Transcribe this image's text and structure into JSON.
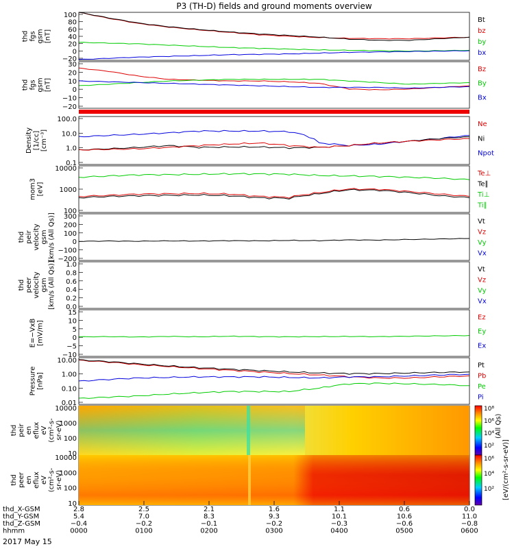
{
  "title": "P3 (TH-D) fields and ground moments overview",
  "colors": {
    "black": "#000000",
    "red": "#dd0000",
    "green": "#00cc00",
    "blue": "#0000dd"
  },
  "colorbar_label_left": "[eV/(cm²-s-sr-eV)]",
  "colorbar_label_right": "(All Qs)",
  "colorbar_ticks": [
    "10⁸",
    "10⁶",
    "10⁴",
    "10²"
  ],
  "colorbar_ticks_lower": [
    "10⁶",
    "10⁴",
    "10²"
  ],
  "chart_data": [
    {
      "type": "line",
      "ylabel": [
        "thd",
        "fgs",
        "gsm",
        "[nT]"
      ],
      "ylim": [
        -20,
        100
      ],
      "ticks": [
        "100",
        "80",
        "60",
        "40",
        "20",
        "0",
        "−20"
      ],
      "legend": [
        {
          "name": "Bt",
          "color": "#000000"
        },
        {
          "name": "bz",
          "color": "#dd0000"
        },
        {
          "name": "by",
          "color": "#00cc00"
        },
        {
          "name": "bx",
          "color": "#0000dd"
        }
      ],
      "series": [
        {
          "name": "bz",
          "values": [
            100,
            85,
            72,
            63,
            56,
            50,
            44,
            40,
            37,
            35,
            34,
            34,
            36,
            38
          ]
        },
        {
          "name": "Bt",
          "values": [
            100,
            86,
            73,
            64,
            57,
            51,
            46,
            42,
            38,
            33,
            30,
            30,
            34,
            38
          ]
        },
        {
          "name": "by",
          "values": [
            25,
            23,
            21,
            18,
            15,
            12,
            10,
            8,
            6,
            5,
            4,
            3,
            4,
            5
          ]
        },
        {
          "name": "bx",
          "values": [
            -18,
            -15,
            -12,
            -10,
            -8,
            -6,
            -5,
            -4,
            -2,
            0,
            1,
            2,
            3,
            4
          ]
        }
      ]
    },
    {
      "type": "line",
      "ylabel": [
        "thd",
        "fgs",
        "gsm",
        "[nT]"
      ],
      "ylim": [
        -28,
        30
      ],
      "ticks": [
        "30",
        "20",
        "10",
        "0",
        "−10",
        "−20"
      ],
      "legend": [
        {
          "name": "Bz",
          "color": "#dd0000"
        },
        {
          "name": "By",
          "color": "#00cc00"
        },
        {
          "name": "Bx",
          "color": "#0000dd"
        }
      ],
      "series": [
        {
          "name": "Bz",
          "values": [
            22,
            18,
            12,
            8,
            7,
            6,
            6,
            5,
            3,
            -4,
            -5,
            -4,
            -2,
            0
          ]
        },
        {
          "name": "By",
          "values": [
            0,
            2,
            4,
            6,
            7,
            8,
            8,
            8,
            8,
            6,
            4,
            2,
            3,
            4
          ]
        },
        {
          "name": "Bx",
          "values": [
            6,
            5,
            4,
            3,
            2,
            1,
            0,
            -1,
            -2,
            -2,
            -2,
            -3,
            -2,
            -1
          ]
        }
      ]
    },
    {
      "type": "line",
      "ylabel": [
        "Density",
        "[1/cc]",
        "[cm⁻³]"
      ],
      "log": true,
      "ylim": [
        0.1,
        200
      ],
      "ticks": [
        "100.0",
        "10.0",
        "1.0",
        "0.1"
      ],
      "legend": [
        {
          "name": "Ne",
          "color": "#dd0000"
        },
        {
          "name": "Ni",
          "color": "#000000"
        },
        {
          "name": "Npot",
          "color": "#0000dd"
        }
      ],
      "series": [
        {
          "name": "Npot",
          "values": [
            8,
            10,
            12,
            15,
            20,
            20,
            20,
            18,
            3,
            2,
            2.5,
            4,
            6,
            10
          ]
        },
        {
          "name": "Ni",
          "values": [
            1,
            1.2,
            1.5,
            2,
            1.5,
            1.6,
            1.6,
            1.4,
            1.5,
            2,
            3,
            4,
            6,
            8
          ]
        },
        {
          "name": "Ne",
          "values": [
            1,
            1.1,
            1.2,
            1.5,
            2,
            2.5,
            3,
            2,
            1.5,
            2,
            3,
            4,
            5,
            6
          ]
        }
      ]
    },
    {
      "type": "line",
      "ylabel": [
        "mom3",
        "[eV]"
      ],
      "log": true,
      "ylim": [
        20,
        12000
      ],
      "ticks": [
        "10000",
        "1000",
        "100"
      ],
      "legend": [
        {
          "name": "Te⊥",
          "color": "#dd0000"
        },
        {
          "name": "Te∥",
          "color": "#000000"
        },
        {
          "name": "Ti⊥",
          "color": "#00cc00"
        },
        {
          "name": "Ti∥",
          "color": "#00cc00"
        }
      ],
      "series": [
        {
          "name": "Ti⊥",
          "values": [
            2500,
            3000,
            3500,
            3600,
            3800,
            4000,
            4000,
            3800,
            3200,
            3000,
            2800,
            2500,
            2200,
            1800
          ]
        },
        {
          "name": "Te⊥",
          "values": [
            180,
            210,
            250,
            260,
            270,
            250,
            180,
            160,
            300,
            500,
            480,
            350,
            250,
            180
          ]
        },
        {
          "name": "Te∥",
          "values": [
            150,
            180,
            200,
            210,
            220,
            200,
            150,
            140,
            260,
            450,
            420,
            300,
            200,
            150
          ]
        }
      ]
    },
    {
      "type": "line",
      "ylabel": [
        "thd",
        "peir",
        "velocity",
        "gsm",
        "[km/s (All Qs)]"
      ],
      "ylim": [
        -200,
        300
      ],
      "ticks": [
        "300",
        "200",
        "100",
        "0",
        "−100",
        "−200"
      ],
      "legend": [
        {
          "name": "Vt",
          "color": "#000000"
        },
        {
          "name": "Vz",
          "color": "#dd0000"
        },
        {
          "name": "Vy",
          "color": "#00cc00"
        },
        {
          "name": "Vx",
          "color": "#0000dd"
        }
      ],
      "series": [
        {
          "name": "Vt",
          "values": [
            5,
            8,
            6,
            10,
            8,
            12,
            10,
            15,
            12,
            20,
            18,
            25,
            30,
            35
          ]
        }
      ]
    },
    {
      "type": "line",
      "ylabel": [
        "thd",
        "peer",
        "velocity",
        "gsm",
        "[km/s (All Qs)]"
      ],
      "ylim": [
        0,
        1
      ],
      "ticks": [
        "1.0",
        "0.8",
        "0.6",
        "0.4",
        "0.2",
        "0.0"
      ],
      "legend": [
        {
          "name": "Vt",
          "color": "#000000"
        },
        {
          "name": "Vz",
          "color": "#dd0000"
        },
        {
          "name": "Vy",
          "color": "#00cc00"
        },
        {
          "name": "Vx",
          "color": "#0000dd"
        }
      ],
      "series": []
    },
    {
      "type": "line",
      "ylabel": [
        "E=−VxB",
        "[mV/m]"
      ],
      "ylim": [
        -10,
        15
      ],
      "ticks": [
        "15",
        "10",
        "5",
        "0",
        "−5",
        "−10"
      ],
      "legend": [
        {
          "name": "Ez",
          "color": "#dd0000"
        },
        {
          "name": "Ey",
          "color": "#00cc00"
        },
        {
          "name": "Ex",
          "color": "#0000dd"
        }
      ],
      "series": [
        {
          "name": "Ey",
          "values": [
            0.5,
            0.6,
            0.4,
            0.7,
            0.5,
            0.8,
            0.6,
            0.5,
            0.6,
            0.7,
            0.6,
            0.8,
            1,
            1.2
          ]
        }
      ]
    },
    {
      "type": "line",
      "ylabel": [
        "Pressure",
        "[nPa]"
      ],
      "log": true,
      "ylim": [
        0.008,
        12
      ],
      "ticks": [
        "10.00",
        "1.00",
        "0.10",
        "0.01"
      ],
      "legend": [
        {
          "name": "Pt",
          "color": "#000000"
        },
        {
          "name": "Pb",
          "color": "#dd0000"
        },
        {
          "name": "Pe",
          "color": "#00cc00"
        },
        {
          "name": "Pi",
          "color": "#0000dd"
        }
      ],
      "series": [
        {
          "name": "Pb",
          "values": [
            8,
            6,
            4,
            3,
            2.2,
            1.7,
            1.3,
            1,
            0.8,
            0.6,
            0.5,
            0.5,
            0.6,
            0.7
          ]
        },
        {
          "name": "Pt",
          "values": [
            8.5,
            6.5,
            4.5,
            3.3,
            2.5,
            2,
            1.6,
            1.3,
            1.1,
            1,
            1,
            1.1,
            1.2,
            1.3
          ]
        },
        {
          "name": "Pi",
          "values": [
            0.3,
            0.4,
            0.5,
            0.55,
            0.6,
            0.6,
            0.6,
            0.55,
            0.5,
            0.6,
            0.6,
            0.7,
            0.8,
            0.9
          ]
        },
        {
          "name": "Pe",
          "values": [
            0.02,
            0.025,
            0.03,
            0.04,
            0.05,
            0.06,
            0.06,
            0.06,
            0.1,
            0.2,
            0.22,
            0.2,
            0.18,
            0.15
          ]
        }
      ]
    },
    {
      "type": "heatmap",
      "ylabel": [
        "thd",
        "peir",
        "en",
        "eflux",
        "eV",
        "(cm²-s-",
        "sr-eV)"
      ],
      "log": true,
      "ylim": [
        7,
        30000
      ],
      "ticks": [
        "10000",
        "1000",
        "100",
        "10"
      ]
    },
    {
      "type": "heatmap",
      "ylabel": [
        "thd",
        "peer",
        "en",
        "eflux",
        "eV",
        "(cm²-s-",
        "sr-eV)"
      ],
      "log": true,
      "ylim": [
        7,
        30000
      ],
      "ticks": [
        "10000",
        "1000",
        "100",
        "10"
      ]
    }
  ],
  "ephemeris": [
    {
      "label": "thd_X-GSM",
      "values": [
        "2.8",
        "2.5",
        "2.1",
        "1.6",
        "1.1",
        "0.6",
        "0.0"
      ]
    },
    {
      "label": "thd_Y-GSM",
      "values": [
        "5.4",
        "7.0",
        "8.3",
        "9.3",
        "10.1",
        "10.6",
        "11.0"
      ]
    },
    {
      "label": "thd_Z-GSM",
      "values": [
        "−0.4",
        "−0.2",
        "−0.1",
        "−0.2",
        "−0.3",
        "−0.6",
        "−0.8"
      ]
    },
    {
      "label": "hhmm",
      "values": [
        "0000",
        "0100",
        "0200",
        "0300",
        "0400",
        "0500",
        "0600"
      ]
    }
  ],
  "date": "2017 May 15"
}
